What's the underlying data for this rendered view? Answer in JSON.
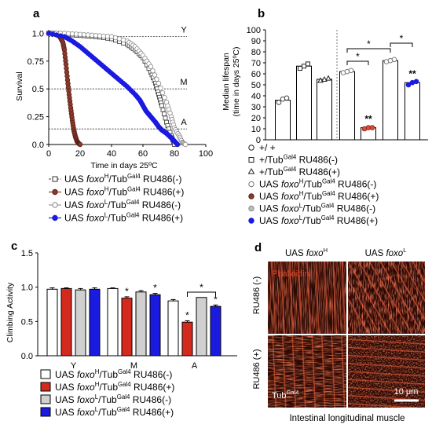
{
  "panel_a": {
    "letter": "a",
    "ylabel": "Survival",
    "xlabel": "Time in days 25ºC",
    "xticks": [
      "0",
      "20",
      "40",
      "60",
      "80",
      "100"
    ],
    "yticks": [
      "0.0",
      "0.25",
      "0.5",
      "0.75",
      "1.0"
    ],
    "stage_labels": [
      "Y",
      "M",
      "A"
    ],
    "legend": [
      {
        "pre": "UAS ",
        "gene": "foxo",
        "sup": "H",
        "mid": "/Tub",
        "sup2": "Gal4",
        "post": " RU486(-)"
      },
      {
        "pre": "UAS ",
        "gene": "foxo",
        "sup": "H",
        "mid": "/Tub",
        "sup2": "Gal4",
        "post": " RU486(+)"
      },
      {
        "pre": "UAS ",
        "gene": "foxo",
        "sup": "L",
        "mid": "/Tub",
        "sup2": "Gal4",
        "post": " RU486(-)"
      },
      {
        "pre": "UAS ",
        "gene": "foxo",
        "sup": "L",
        "mid": "/Tub",
        "sup2": "Gal4",
        "post": " RU486(+)"
      }
    ]
  },
  "panel_b": {
    "letter": "b",
    "ylabel_line1": "Median lifespan",
    "ylabel_line2": "(time in days 25ºC)",
    "yticks": [
      "0",
      "10",
      "20",
      "30",
      "40",
      "50",
      "60",
      "70",
      "80",
      "90",
      "100"
    ],
    "annotations": [
      "**",
      "**",
      "*",
      "*",
      "*"
    ],
    "legend": [
      {
        "pre": "+/ +",
        "gene": "",
        "sup": "",
        "mid": "",
        "sup2": "",
        "post": ""
      },
      {
        "pre": "+/Tub",
        "gene": "",
        "sup": "",
        "mid": "",
        "sup2": "Gal4",
        "post": " RU486(-)"
      },
      {
        "pre": "+/Tub",
        "gene": "",
        "sup": "",
        "mid": "",
        "sup2": "Gal4",
        "post": " RU486(+)"
      },
      {
        "pre": "UAS ",
        "gene": "foxo",
        "sup": "H",
        "mid": "/Tub",
        "sup2": "Gal4",
        "post": " RU486(-)"
      },
      {
        "pre": "UAS ",
        "gene": "foxo",
        "sup": "H",
        "mid": "/Tub",
        "sup2": "Gal4",
        "post": " RU486(+)"
      },
      {
        "pre": "UAS ",
        "gene": "foxo",
        "sup": "L",
        "mid": "/Tub",
        "sup2": "Gal4",
        "post": " RU486(-)"
      },
      {
        "pre": "UAS ",
        "gene": "foxo",
        "sup": "L",
        "mid": "/Tub",
        "sup2": "Gal4",
        "post": " RU486(+)"
      }
    ]
  },
  "panel_c": {
    "letter": "c",
    "ylabel": "Climbing Activity",
    "yticks": [
      "0.0",
      "0.5",
      "1.0",
      "1.5"
    ],
    "categories": [
      "Y",
      "M",
      "A"
    ],
    "annotations": [
      "*",
      "*",
      "*",
      "*",
      "*"
    ],
    "legend": [
      {
        "pre": "UAS ",
        "gene": "foxo",
        "sup": "H",
        "mid": "/Tub",
        "sup2": "Gal4",
        "post": " RU486(-)"
      },
      {
        "pre": "UAS ",
        "gene": "foxo",
        "sup": "H",
        "mid": "/Tub",
        "sup2": "Gal4",
        "post": " RU486(+)"
      },
      {
        "pre": "UAS ",
        "gene": "foxo",
        "sup": "L",
        "mid": "/Tub",
        "sup2": "Gal4",
        "post": " RU486(-)"
      },
      {
        "pre": "UAS ",
        "gene": "foxo",
        "sup": "L",
        "mid": "/Tub",
        "sup2": "Gal4",
        "post": " RU486(+)"
      }
    ]
  },
  "panel_d": {
    "letter": "d",
    "col1_pre": "UAS ",
    "col1_gene": "foxo",
    "col1_sup": "H",
    "col2_pre": "UAS ",
    "col2_gene": "foxo",
    "col2_sup": "L",
    "row1": "RU486 (-)",
    "row2": "RU486 (+)",
    "stain": "Phalloidin",
    "driver_pre": "Tub",
    "driver_sup": "Gal4",
    "scalebar": "10 μm",
    "caption": "Intestinal  longitudinal  muscle"
  },
  "colors": {
    "white_bar": "#ffffff",
    "foxoH_plus": "#d42a1e",
    "foxoL_minus": "#d0d0d0",
    "foxoL_plus": "#1a1ae0",
    "brown": "#8b3a2c",
    "muscle_red": "#c8321a"
  },
  "chart_data": [
    {
      "type": "line",
      "panel": "a",
      "xlabel": "Time in days 25ºC",
      "ylabel": "Survival",
      "xlim": [
        0,
        100
      ],
      "ylim": [
        0,
        1.0
      ],
      "reference_lines": [
        {
          "label": "Y",
          "y": 0.97
        },
        {
          "label": "M",
          "y": 0.5
        },
        {
          "label": "A",
          "y": 0.14
        }
      ],
      "series": [
        {
          "name": "UAS foxoH/TubGal4 RU486(-)",
          "style": "open-square",
          "x": [
            0,
            5,
            10,
            20,
            30,
            40,
            50,
            55,
            60,
            65,
            68,
            70,
            72,
            75,
            78,
            80
          ],
          "y": [
            1.0,
            1.0,
            0.99,
            0.98,
            0.97,
            0.95,
            0.9,
            0.85,
            0.78,
            0.65,
            0.55,
            0.45,
            0.35,
            0.2,
            0.08,
            0.0
          ]
        },
        {
          "name": "UAS foxoH/TubGal4 RU486(+)",
          "style": "brown-filled",
          "x": [
            0,
            3,
            5,
            7,
            9,
            10,
            11,
            12,
            13,
            14,
            15,
            16,
            17,
            18,
            19,
            20
          ],
          "y": [
            1.0,
            1.0,
            0.99,
            0.97,
            0.92,
            0.85,
            0.72,
            0.58,
            0.45,
            0.33,
            0.22,
            0.13,
            0.07,
            0.03,
            0.01,
            0.0
          ]
        },
        {
          "name": "UAS foxoL/TubGal4 RU486(-)",
          "style": "grey-open",
          "x": [
            0,
            10,
            20,
            30,
            40,
            50,
            55,
            60,
            65,
            70,
            75,
            78,
            80,
            83,
            85,
            87
          ],
          "y": [
            1.0,
            1.0,
            0.99,
            0.98,
            0.97,
            0.93,
            0.88,
            0.8,
            0.7,
            0.55,
            0.38,
            0.25,
            0.15,
            0.08,
            0.02,
            0.0
          ]
        },
        {
          "name": "UAS foxoL/TubGal4 RU486(+)",
          "style": "blue-filled",
          "x": [
            0,
            10,
            15,
            20,
            25,
            30,
            35,
            40,
            45,
            50,
            55,
            58,
            60,
            62,
            65,
            68,
            70,
            72,
            75,
            78,
            80,
            82
          ],
          "y": [
            1.0,
            0.97,
            0.93,
            0.88,
            0.82,
            0.76,
            0.7,
            0.64,
            0.58,
            0.52,
            0.45,
            0.4,
            0.35,
            0.3,
            0.25,
            0.2,
            0.16,
            0.13,
            0.1,
            0.06,
            0.03,
            0.0
          ]
        }
      ]
    },
    {
      "type": "bar",
      "panel": "b",
      "ylabel": "Median lifespan (time in days 25ºC)",
      "ylim": [
        0,
        100
      ],
      "categories": [
        "+/ +",
        "+/TubGal4 RU486(-)",
        "+/TubGal4 RU486(+)",
        "UAS foxoH/TubGal4 RU486(-)",
        "UAS foxoH/TubGal4 RU486(+)",
        "UAS foxoL/TubGal4 RU486(-)",
        "UAS foxoL/TubGal4 RU486(+)"
      ],
      "values": [
        36,
        67,
        55,
        62,
        11,
        72,
        52
      ],
      "points": [
        [
          34,
          37,
          38
        ],
        [
          65,
          67,
          69
        ],
        [
          54,
          55,
          56
        ],
        [
          61,
          62,
          63
        ],
        [
          10,
          11,
          11
        ],
        [
          71,
          72,
          73
        ],
        [
          50,
          52,
          53
        ]
      ]
    },
    {
      "type": "bar",
      "panel": "c",
      "ylabel": "Climbing Activity",
      "ylim": [
        0,
        1.5
      ],
      "categories": [
        "Y",
        "M",
        "A"
      ],
      "series": [
        {
          "name": "UAS foxoH/TubGal4 RU486(-)",
          "values": [
            0.97,
            0.98,
            0.8
          ],
          "errors": [
            0.02,
            0.01,
            0.02
          ]
        },
        {
          "name": "UAS foxoH/TubGal4 RU486(+)",
          "values": [
            0.98,
            0.84,
            0.49
          ],
          "errors": [
            0.01,
            0.02,
            0.02
          ]
        },
        {
          "name": "UAS foxoL/TubGal4 RU486(-)",
          "values": [
            0.96,
            0.93,
            0.85
          ],
          "errors": [
            0.02,
            0.02,
            0.0
          ]
        },
        {
          "name": "UAS foxoL/TubGal4 RU486(+)",
          "values": [
            0.97,
            0.89,
            0.72
          ],
          "errors": [
            0.02,
            0.02,
            0.02
          ]
        }
      ]
    }
  ]
}
